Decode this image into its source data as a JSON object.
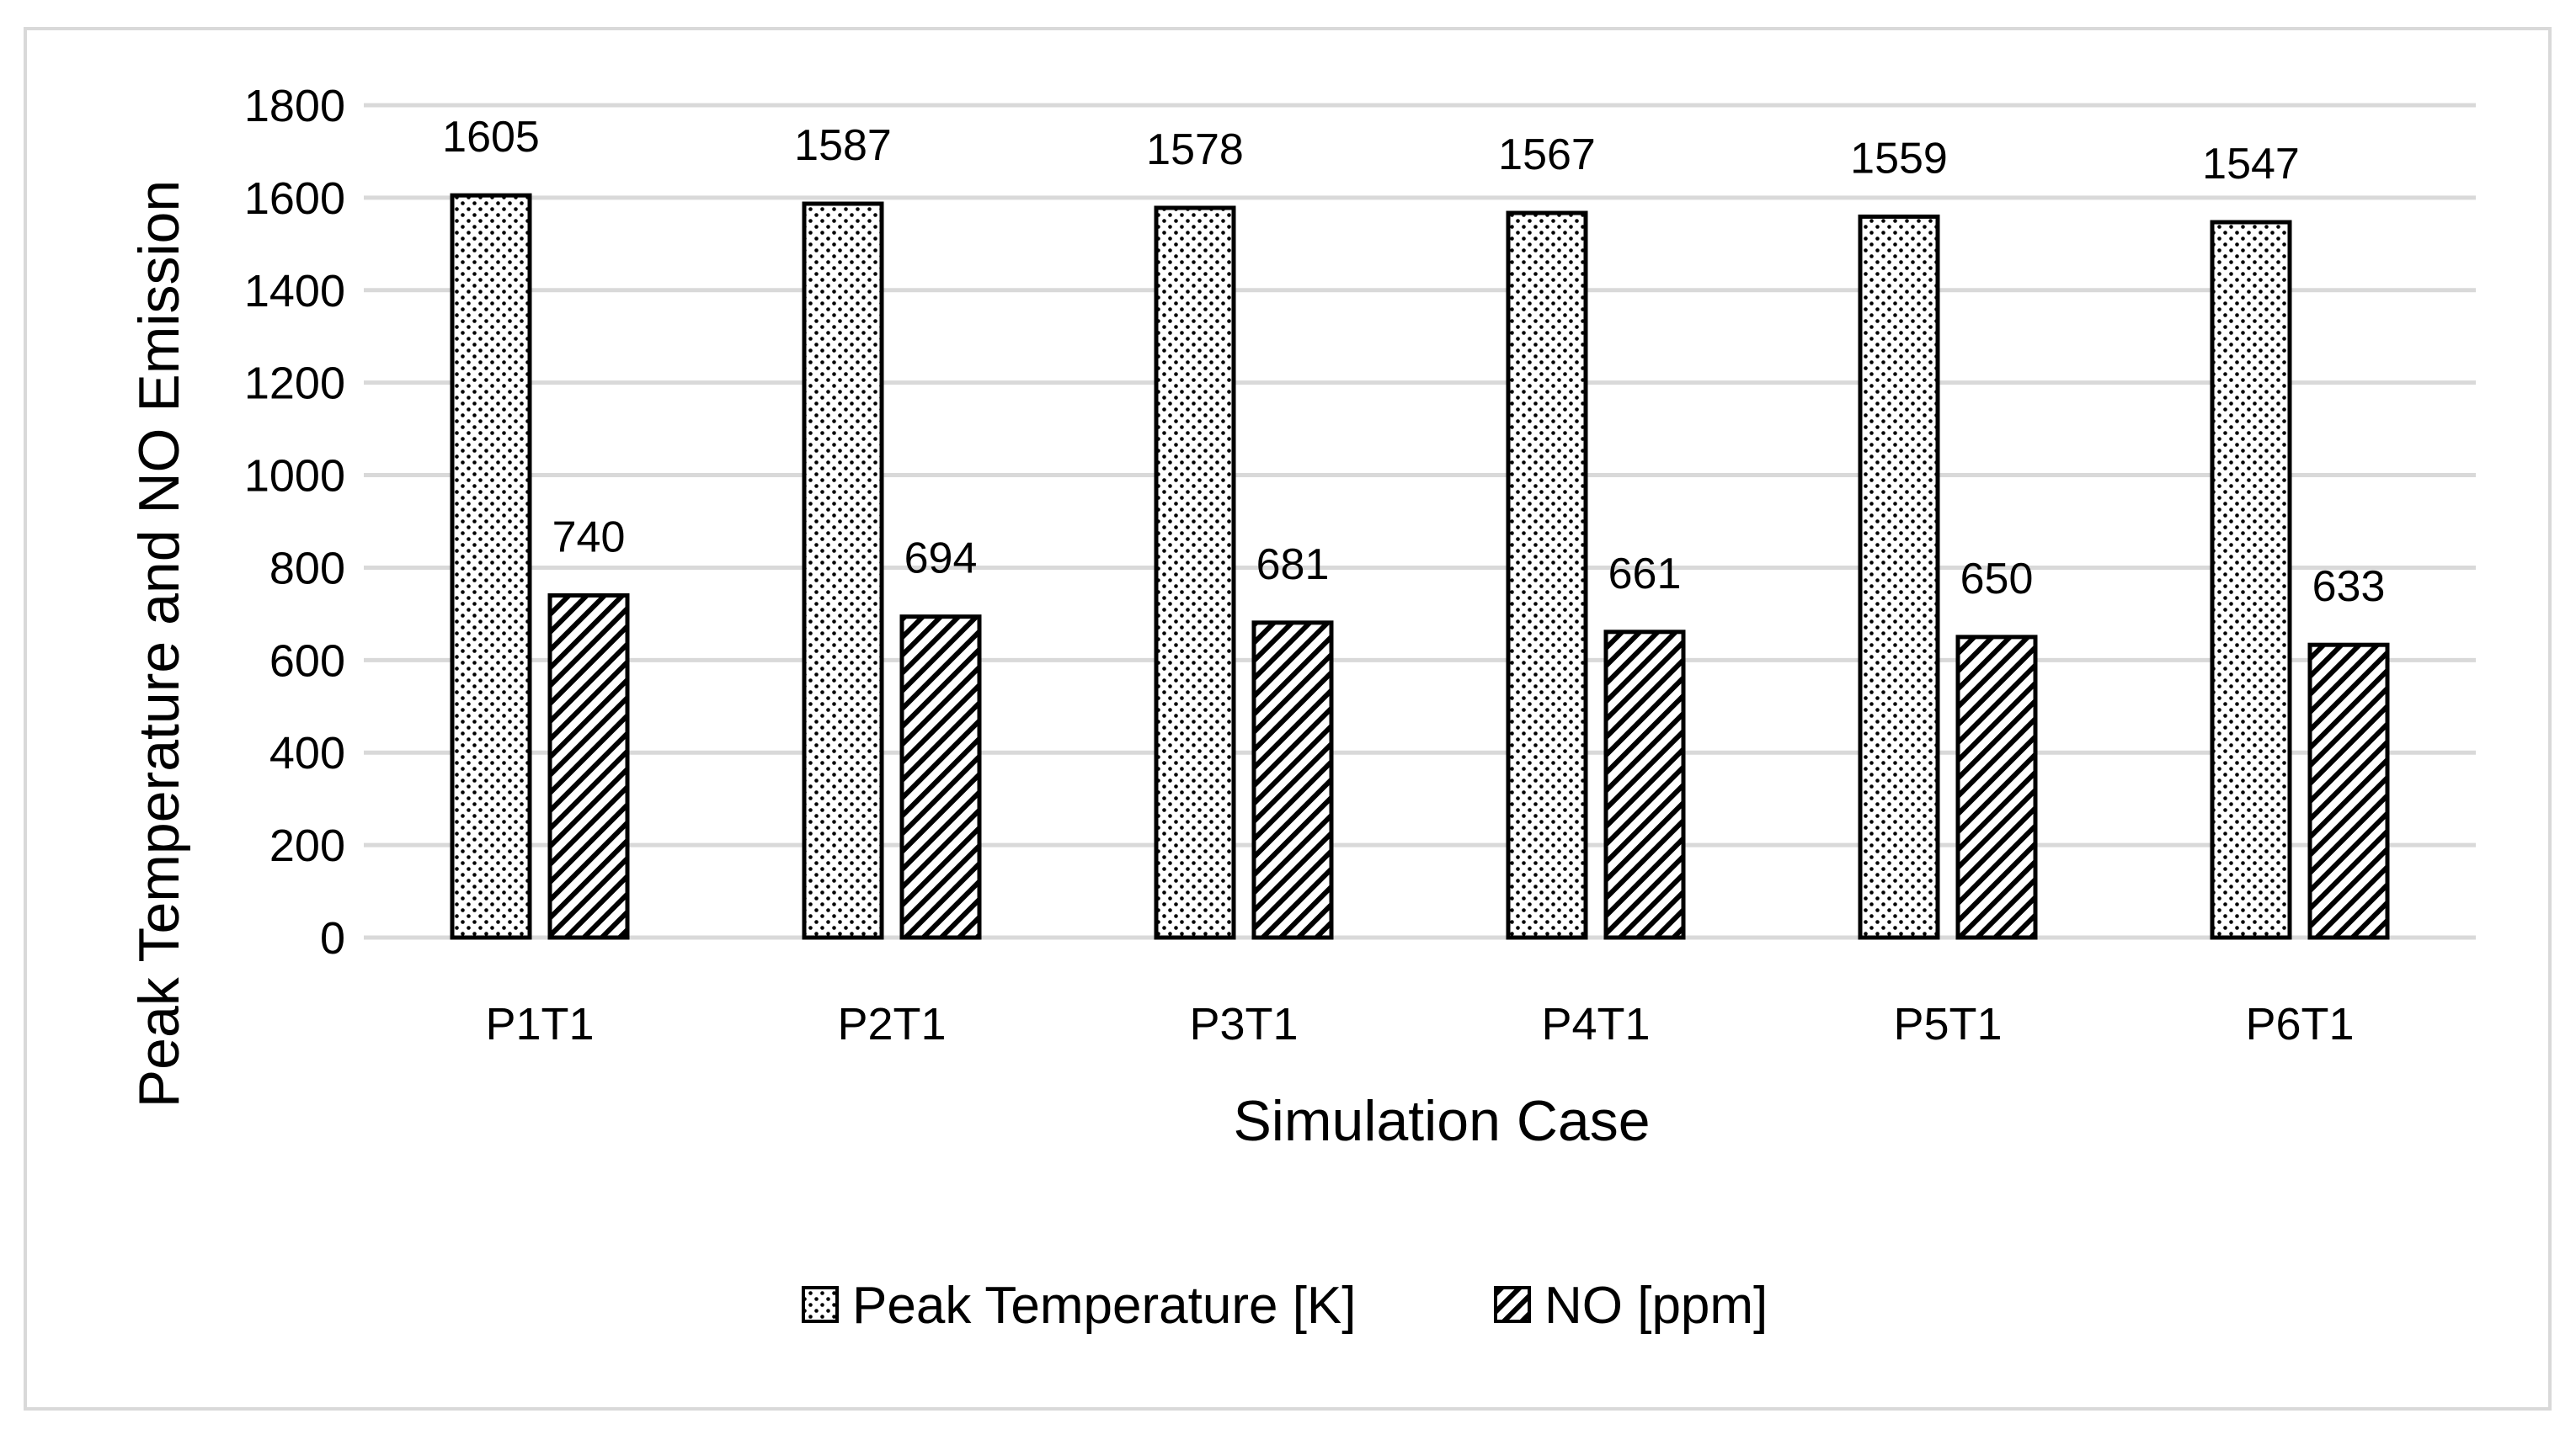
{
  "chart_data": {
    "type": "bar",
    "categories": [
      "P1T1",
      "P2T1",
      "P3T1",
      "P4T1",
      "P5T1",
      "P6T1"
    ],
    "series": [
      {
        "name": "Peak Temperature [K]",
        "values": [
          1605,
          1587,
          1578,
          1567,
          1559,
          1547
        ],
        "pattern": "dots"
      },
      {
        "name": "NO [ppm]",
        "values": [
          740,
          694,
          681,
          661,
          650,
          633
        ],
        "pattern": "hatch"
      }
    ],
    "title": "",
    "xlabel": "Simulation Case",
    "ylabel": "Peak Temperature and NO Emission",
    "ylim": [
      0,
      1800
    ],
    "yticks": [
      0,
      200,
      400,
      600,
      800,
      1000,
      1200,
      1400,
      1600,
      1800
    ],
    "grid": true,
    "legend_position": "bottom"
  },
  "colors": {
    "grid": "#d9d9d9",
    "bar_outline": "#000000",
    "frame": "#d9d9d9"
  }
}
